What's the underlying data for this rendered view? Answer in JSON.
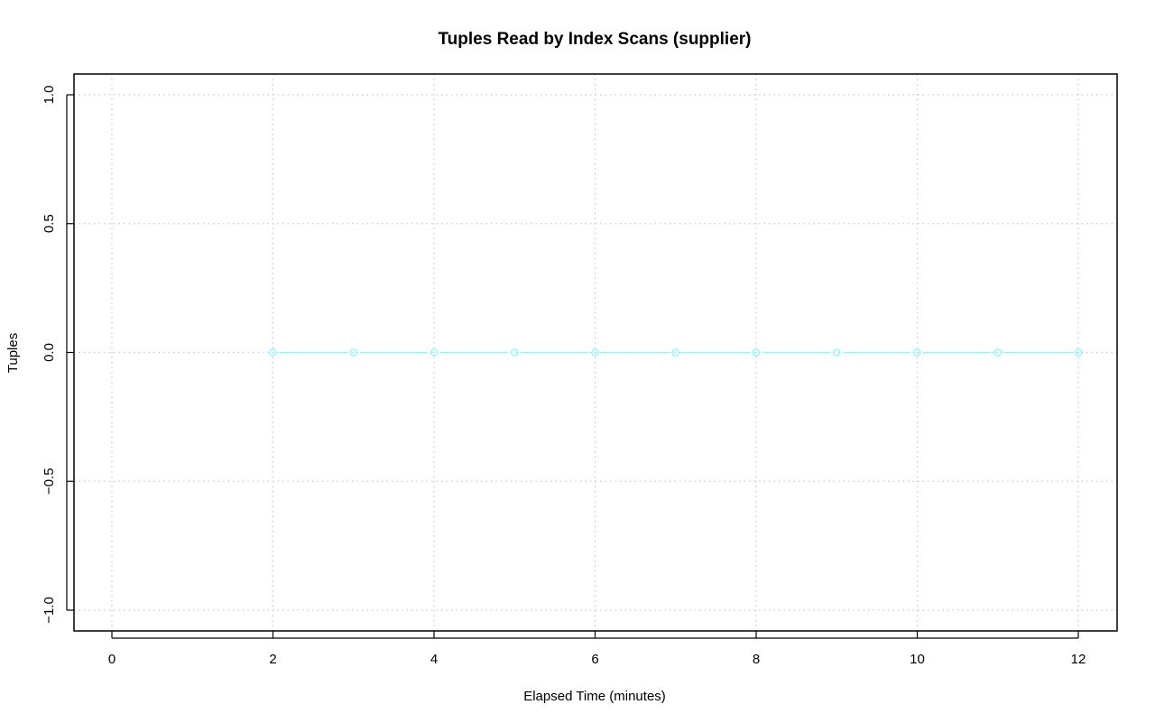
{
  "chart_data": {
    "type": "line",
    "title": "Tuples Read by Index Scans (supplier)",
    "xlabel": "Elapsed Time (minutes)",
    "ylabel": "Tuples",
    "xlim": [
      0,
      12
    ],
    "ylim": [
      -1,
      1
    ],
    "xticks": [
      "0",
      "2",
      "4",
      "6",
      "8",
      "10",
      "12"
    ],
    "yticks": [
      "-1.0",
      "-0.5",
      "0.0",
      "0.5",
      "1.0"
    ],
    "grid": true,
    "series": [
      {
        "color": "#7fffff",
        "x": [
          2,
          3,
          4,
          5,
          6,
          7,
          8,
          9,
          10,
          11,
          12
        ],
        "y": [
          0,
          0,
          0,
          0,
          0,
          0,
          0,
          0,
          0,
          0,
          0
        ]
      }
    ]
  }
}
